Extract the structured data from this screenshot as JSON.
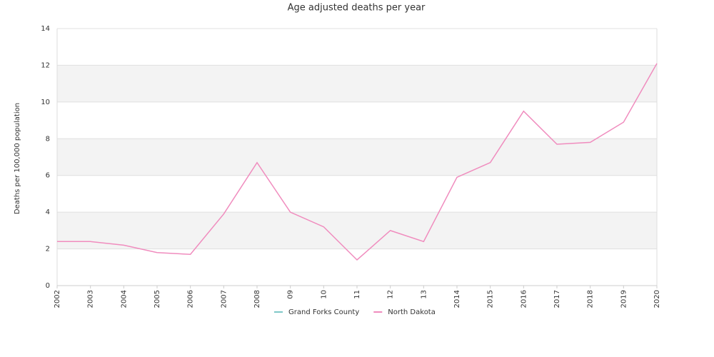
{
  "chart_data": {
    "type": "line",
    "title": "Age adjusted deaths per year",
    "y_label": "Deaths per 100,000 population",
    "categories": [
      "2002",
      "2003",
      "2004",
      "2005",
      "2006",
      "2007",
      "2008",
      "09",
      "10",
      "11",
      "12",
      "13",
      "2014",
      "2015",
      "2016",
      "2017",
      "2018",
      "2019",
      "2020"
    ],
    "series": [
      {
        "name": "Grand Forks County",
        "color": "#7ec8c8",
        "values": [
          null,
          null,
          null,
          null,
          null,
          null,
          null,
          null,
          null,
          null,
          null,
          null,
          null,
          null,
          null,
          null,
          null,
          null,
          null
        ]
      },
      {
        "name": "North Dakota",
        "color": "#f08cbe",
        "values": [
          2.4,
          2.4,
          2.2,
          1.8,
          1.7,
          3.9,
          6.7,
          4.0,
          3.2,
          1.4,
          3.0,
          2.4,
          5.9,
          6.7,
          9.5,
          7.7,
          7.8,
          8.9,
          12.1
        ]
      }
    ],
    "ylim": [
      0,
      14
    ],
    "yticks": [
      0,
      2,
      4,
      6,
      8,
      10,
      12,
      14
    ],
    "grid": true,
    "legend": "bottom"
  }
}
